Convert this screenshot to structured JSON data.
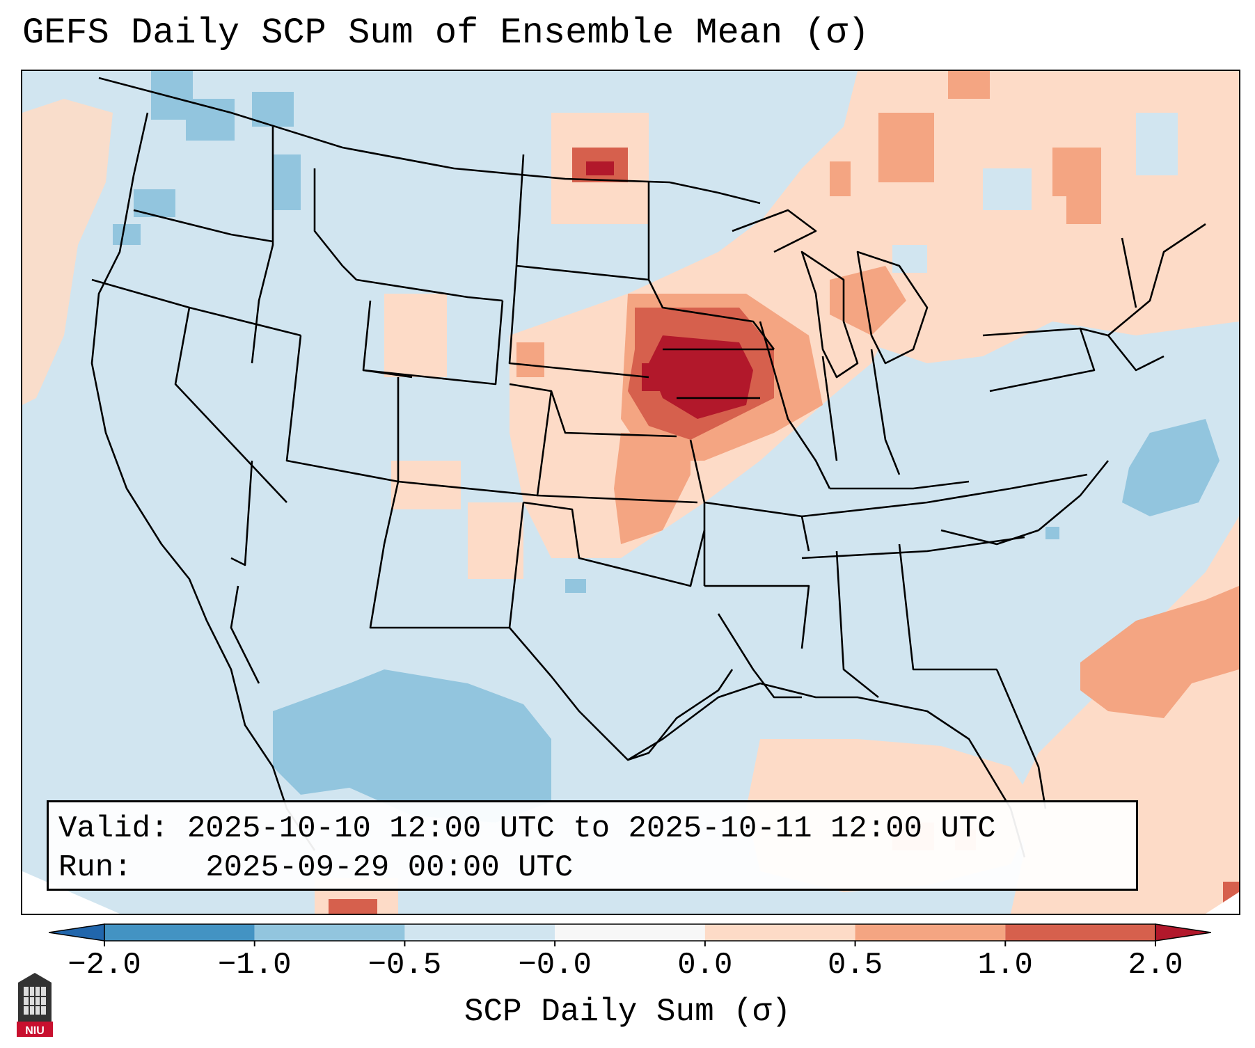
{
  "title": "GEFS Daily SCP Sum of Ensemble Mean (σ)",
  "info": {
    "valid_label": "Valid:",
    "valid_value": "2025-10-10 12:00 UTC to 2025-10-11 12:00 UTC",
    "run_label": "Run:",
    "run_value": "2025-09-29 00:00 UTC"
  },
  "colorbar": {
    "label": "SCP Daily Sum (σ)",
    "ticks": [
      "−2.0",
      "−1.0",
      "−0.5",
      "−0.0",
      "0.0",
      "0.5",
      "1.0",
      "2.0"
    ],
    "colors": [
      "#4393c3",
      "#92c5de",
      "#d1e5f0",
      "#f7f7f7",
      "#fddbc7",
      "#f4a582",
      "#d6604d"
    ],
    "extend_low_color": "#2166ac",
    "extend_high_color": "#b2182b"
  },
  "logo": {
    "text": "NIU"
  },
  "map": {
    "background_color": "#d1e5f0",
    "features": [
      "state-borders",
      "coastlines",
      "max-anomaly-iowa",
      "positive-anomaly-midwest",
      "positive-anomaly-atlantic",
      "negative-anomaly-mexico",
      "negative-anomaly-pacific-northwest"
    ]
  }
}
